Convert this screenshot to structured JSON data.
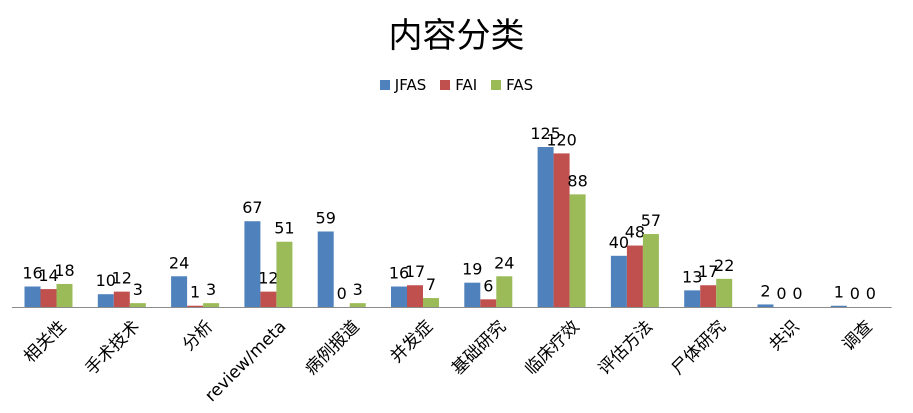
{
  "chart_data": {
    "type": "bar",
    "title": "内容分类",
    "categories": [
      "相关性",
      "手术技术",
      "分析",
      "review/meta",
      "病例报道",
      "并发症",
      "基础研究",
      "临床疗效",
      "评估方法",
      "尸体研究",
      "共识",
      "调查"
    ],
    "series": [
      {
        "name": "JFAS",
        "color": "#4f81bd",
        "values": [
          16,
          10,
          24,
          67,
          59,
          16,
          19,
          125,
          40,
          13,
          2,
          1
        ]
      },
      {
        "name": "FAI",
        "color": "#c0504d",
        "values": [
          14,
          12,
          1,
          12,
          0,
          17,
          6,
          120,
          48,
          17,
          0,
          0
        ]
      },
      {
        "name": "FAS",
        "color": "#9bbb59",
        "values": [
          18,
          3,
          3,
          51,
          3,
          7,
          24,
          88,
          57,
          22,
          0,
          0
        ]
      }
    ],
    "ylim": [
      0,
      130
    ],
    "legend_position": "top",
    "grid": false
  }
}
